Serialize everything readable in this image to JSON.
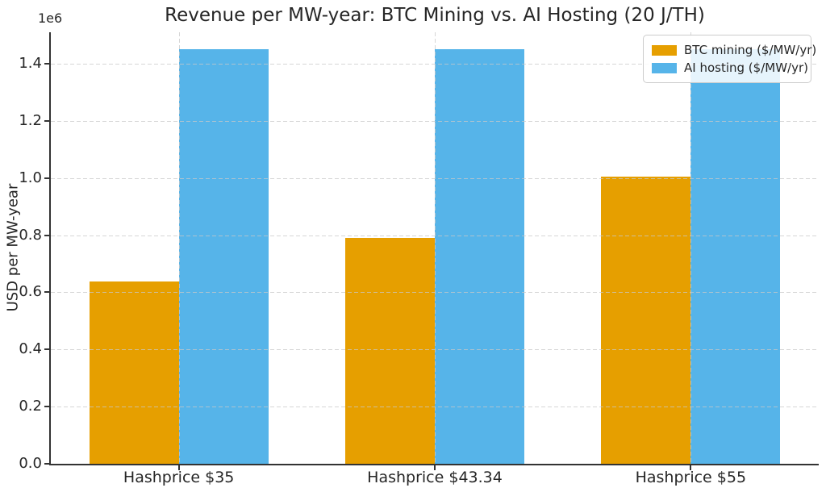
{
  "figure": {
    "background": "#ffffff"
  },
  "colors": {
    "btc_mining": "#E69F00",
    "ai_hosting": "#56B4E9",
    "text": "#262626",
    "spine": "#333333",
    "grid": "#c8c8c8"
  },
  "chart_data": {
    "type": "bar",
    "title": "Revenue per MW-year: BTC Mining vs. AI Hosting (20 J/TH)",
    "xlabel": "",
    "ylabel": "USD per MW-year",
    "offset_text": "1e6",
    "categories": [
      "Hashprice $35",
      "Hashprice $43.34",
      "Hashprice $55"
    ],
    "series": [
      {
        "name": "BTC mining ($/MW/yr)",
        "color": "#E69F00",
        "values": [
          638750,
          790955,
          1003750
        ]
      },
      {
        "name": "AI hosting ($/MW/yr)",
        "color": "#56B4E9",
        "values": [
          1450000,
          1450000,
          1450000
        ]
      }
    ],
    "ylim": [
      0,
      1510000
    ],
    "yticks": [
      0,
      200000,
      400000,
      600000,
      800000,
      1000000,
      1200000,
      1400000
    ],
    "ytick_labels": [
      "0.0",
      "0.2",
      "0.4",
      "0.6",
      "0.8",
      "1.0",
      "1.2",
      "1.4"
    ],
    "grid": true,
    "grid_style": "dashed",
    "legend_position": "upper right",
    "bar_width_fraction": 0.35
  }
}
